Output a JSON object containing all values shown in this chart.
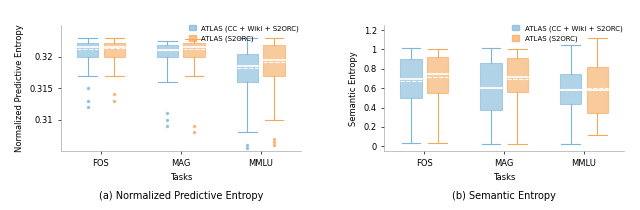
{
  "left_title": "(a) Normalized Predictive Entropy",
  "right_title": "(b) Semantic Entropy",
  "tasks": [
    "FOS",
    "MAG",
    "MMLU"
  ],
  "legend_labels": [
    "ATLAS (CC + Wiki + S2ORC)",
    "ATLAS (S2ORC)"
  ],
  "color_blue": "#7EB6D9",
  "color_orange": "#F5A85A",
  "left_ylabel": "Normalized Predictive Entropy",
  "right_ylabel": "Semantic Entropy",
  "xlabel": "Tasks",
  "left_ylim": [
    0.305,
    0.325
  ],
  "right_ylim": [
    -0.05,
    1.25
  ],
  "left_yticks": [
    0.31,
    0.315,
    0.32
  ],
  "right_yticks": [
    0.0,
    0.2,
    0.4,
    0.6,
    0.8,
    1.0,
    1.2
  ],
  "left_ytick_labels": [
    "0.31",
    "0.315",
    "0.32"
  ],
  "right_ytick_labels": [
    "0",
    "0.2",
    "0.4",
    "0.6",
    "0.8",
    "1",
    "1.2"
  ],
  "left": {
    "blue": {
      "FOS": {
        "q1": 0.32,
        "q2": 0.3215,
        "q3": 0.3222,
        "mean": 0.3213,
        "whislo": 0.317,
        "whishi": 0.323,
        "fliers_low": [
          0.315,
          0.313,
          0.312
        ],
        "fliers_high": []
      },
      "MAG": {
        "q1": 0.32,
        "q2": 0.321,
        "q3": 0.3218,
        "mean": 0.321,
        "whislo": 0.316,
        "whishi": 0.3225,
        "fliers_low": [
          0.311,
          0.31,
          0.309
        ],
        "fliers_high": []
      },
      "MMLU": {
        "q1": 0.316,
        "q2": 0.3185,
        "q3": 0.3205,
        "mean": 0.3182,
        "whislo": 0.308,
        "whishi": 0.323,
        "fliers_low": [
          0.3055,
          0.306
        ],
        "fliers_high": []
      }
    },
    "orange": {
      "FOS": {
        "q1": 0.32,
        "q2": 0.3215,
        "q3": 0.3222,
        "mean": 0.3214,
        "whislo": 0.317,
        "whishi": 0.323,
        "fliers_low": [
          0.314,
          0.313
        ],
        "fliers_high": []
      },
      "MAG": {
        "q1": 0.32,
        "q2": 0.3215,
        "q3": 0.3222,
        "mean": 0.3212,
        "whislo": 0.317,
        "whishi": 0.3228,
        "fliers_low": [
          0.309,
          0.308
        ],
        "fliers_high": []
      },
      "MMLU": {
        "q1": 0.317,
        "q2": 0.3195,
        "q3": 0.3218,
        "mean": 0.3192,
        "whislo": 0.31,
        "whishi": 0.323,
        "fliers_low": [
          0.307,
          0.3065,
          0.306
        ],
        "fliers_high": []
      }
    }
  },
  "right": {
    "blue": {
      "FOS": {
        "q1": 0.5,
        "q2": 0.7,
        "q3": 0.9,
        "mean": 0.67,
        "whislo": 0.03,
        "whishi": 1.01,
        "fliers_low": [],
        "fliers_high": []
      },
      "MAG": {
        "q1": 0.38,
        "q2": 0.6,
        "q3": 0.86,
        "mean": 0.6,
        "whislo": 0.02,
        "whishi": 1.01,
        "fliers_low": [],
        "fliers_high": []
      },
      "MMLU": {
        "q1": 0.44,
        "q2": 0.58,
        "q3": 0.75,
        "mean": 0.59,
        "whislo": 0.02,
        "whishi": 1.05,
        "fliers_low": [],
        "fliers_high": []
      }
    },
    "orange": {
      "FOS": {
        "q1": 0.55,
        "q2": 0.75,
        "q3": 0.92,
        "mean": 0.72,
        "whislo": 0.03,
        "whishi": 1.0,
        "fliers_low": [],
        "fliers_high": []
      },
      "MAG": {
        "q1": 0.56,
        "q2": 0.72,
        "q3": 0.91,
        "mean": 0.7,
        "whislo": 0.02,
        "whishi": 1.0,
        "fliers_low": [],
        "fliers_high": []
      },
      "MMLU": {
        "q1": 0.34,
        "q2": 0.58,
        "q3": 0.82,
        "mean": 0.6,
        "whislo": 0.12,
        "whishi": 1.12,
        "fliers_low": [],
        "fliers_high": []
      }
    }
  }
}
